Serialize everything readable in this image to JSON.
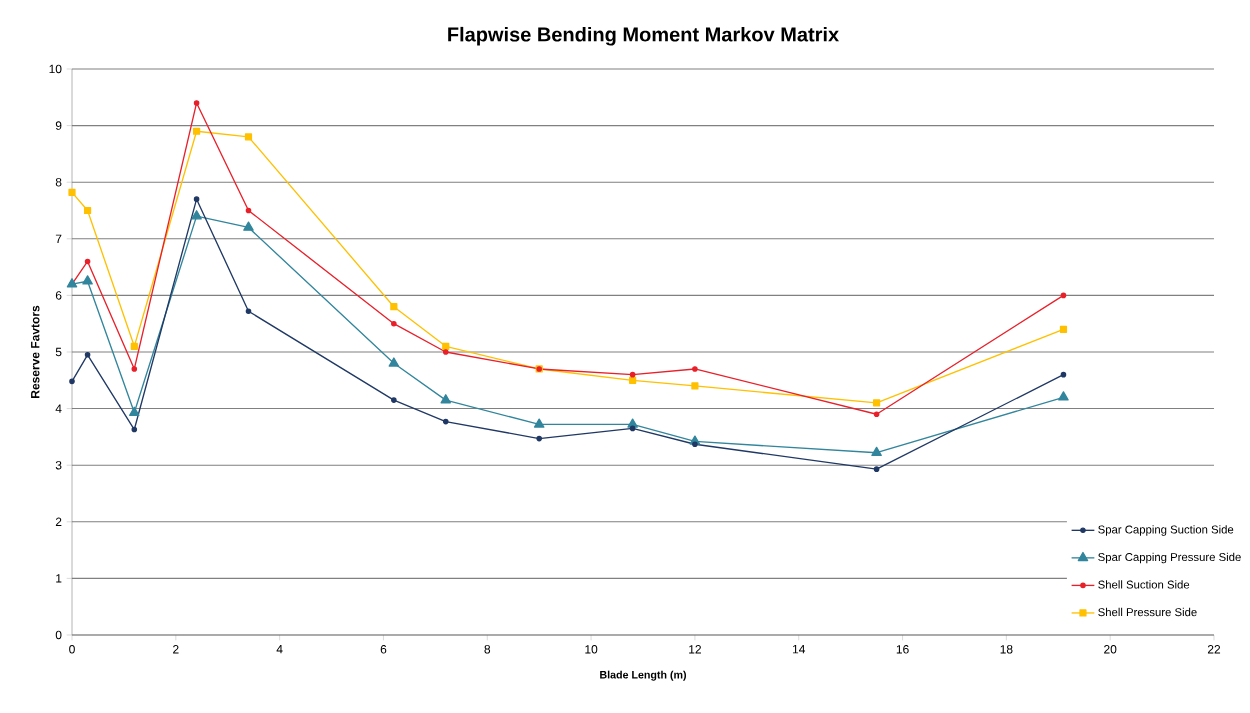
{
  "chart_data": {
    "type": "line",
    "title": "Flapwise Bending Moment Markov Matrix",
    "xlabel": "Blade Length (m)",
    "ylabel": "Reserve Favtors",
    "x": [
      0,
      0.3,
      1.2,
      2.4,
      3.4,
      6.2,
      7.2,
      9.0,
      10.8,
      12.0,
      15.5,
      19.1
    ],
    "series": [
      {
        "name": "Spar Capping Suction Side",
        "color": "#1f3864",
        "marker": "circle",
        "values": [
          4.48,
          4.95,
          3.63,
          7.7,
          5.72,
          4.15,
          3.77,
          3.47,
          3.65,
          3.37,
          2.93,
          4.6
        ]
      },
      {
        "name": "Spar Capping Pressure Side",
        "color": "#31859c",
        "marker": "triangle",
        "values": [
          6.2,
          6.25,
          3.93,
          7.4,
          7.2,
          4.8,
          4.15,
          3.72,
          3.72,
          3.42,
          3.22,
          4.2
        ]
      },
      {
        "name": "Shell Suction Side",
        "color": "#e8202a",
        "marker": "circle",
        "values": [
          6.2,
          6.6,
          4.7,
          9.4,
          7.5,
          5.5,
          5.0,
          4.7,
          4.6,
          4.7,
          3.9,
          6.0
        ]
      },
      {
        "name": "Shell Pressure Side",
        "color": "#ffc000",
        "marker": "square",
        "values": [
          7.82,
          7.5,
          5.1,
          8.9,
          8.8,
          5.8,
          5.1,
          4.7,
          4.5,
          4.4,
          4.1,
          5.4
        ]
      }
    ],
    "xlim": [
      0,
      22
    ],
    "xticks": [
      0,
      2,
      4,
      6,
      8,
      10,
      12,
      14,
      16,
      18,
      20,
      22
    ],
    "ylim": [
      0,
      10
    ],
    "yticks": [
      0,
      1,
      2,
      3,
      4,
      5,
      6,
      7,
      8,
      9,
      10
    ],
    "grid": "y",
    "legend": "bottom right",
    "line_style": "solid"
  }
}
